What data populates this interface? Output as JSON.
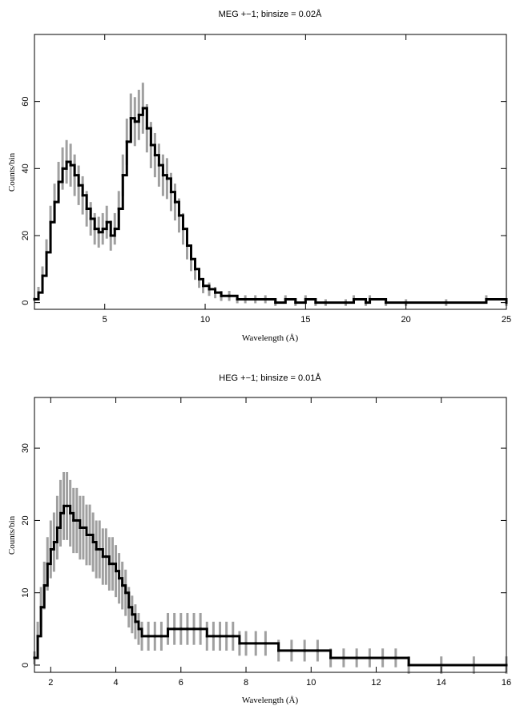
{
  "chart_data": [
    {
      "type": "line",
      "title": "MEG +−1; binsize = 0.02Å",
      "xlabel": "Wavelength (Å)",
      "ylabel": "Counts/bin",
      "xlim": [
        1.5,
        25
      ],
      "ylim": [
        -2,
        80
      ],
      "x_ticks": [
        5,
        10,
        15,
        20,
        25
      ],
      "y_ticks": [
        0,
        20,
        40,
        60
      ],
      "x_tick_labels": [
        "5",
        "10",
        "15",
        "20",
        "25"
      ],
      "y_tick_labels": [
        "0",
        "20",
        "40",
        "60"
      ],
      "grid": false,
      "series": [
        {
          "color": "#000000",
          "error_color": "#a0a0a0",
          "x": [
            1.5,
            1.7,
            1.9,
            2.1,
            2.3,
            2.5,
            2.7,
            2.9,
            3.1,
            3.3,
            3.5,
            3.7,
            3.9,
            4.1,
            4.3,
            4.5,
            4.7,
            4.9,
            5.1,
            5.3,
            5.5,
            5.7,
            5.9,
            6.1,
            6.3,
            6.5,
            6.7,
            6.9,
            7.1,
            7.3,
            7.5,
            7.7,
            7.9,
            8.1,
            8.3,
            8.5,
            8.7,
            8.9,
            9.1,
            9.3,
            9.5,
            9.7,
            9.9,
            10.2,
            10.5,
            10.8,
            11.2,
            11.6,
            12.0,
            12.5,
            13.0,
            13.5,
            14.0,
            14.5,
            15.0,
            15.5,
            16.0,
            17.0,
            17.4,
            18.0,
            18.2,
            19.0,
            20.0,
            22.0,
            24.0,
            25.0
          ],
          "y": [
            1,
            3,
            8,
            15,
            24,
            30,
            36,
            40,
            42,
            41,
            38,
            35,
            32,
            28,
            25,
            22,
            21,
            22,
            24,
            20,
            22,
            28,
            38,
            48,
            55,
            54,
            56,
            58,
            52,
            47,
            44,
            41,
            38,
            37,
            33,
            30,
            26,
            22,
            17,
            13,
            10,
            7,
            5,
            4,
            3,
            2,
            2,
            1,
            1,
            1,
            1,
            0,
            1,
            0,
            1,
            0,
            0,
            0,
            1,
            0,
            1,
            0,
            0,
            0,
            1,
            0
          ],
          "error": [
            0.5,
            1.7,
            2.8,
            3.9,
            4.9,
            5.5,
            6.0,
            6.3,
            6.5,
            6.4,
            6.2,
            5.9,
            5.7,
            5.3,
            5.0,
            4.7,
            4.6,
            4.7,
            4.9,
            4.5,
            4.7,
            5.3,
            6.2,
            6.9,
            7.4,
            7.3,
            7.5,
            7.6,
            7.2,
            6.9,
            6.6,
            6.4,
            6.2,
            6.1,
            5.7,
            5.5,
            5.1,
            4.7,
            4.1,
            3.6,
            3.2,
            2.6,
            2.2,
            2.0,
            1.7,
            1.5,
            1.5,
            1.2,
            1.2,
            1.2,
            1.2,
            1.0,
            1.2,
            1.0,
            1.2,
            1.0,
            1.0,
            1.0,
            1.2,
            1.0,
            1.2,
            1.0,
            1.0,
            1.0,
            1.2,
            1.0
          ]
        }
      ]
    },
    {
      "type": "line",
      "title": "HEG +−1; binsize = 0.01Å",
      "xlabel": "Wavelength (Å)",
      "ylabel": "Counts/bin",
      "xlim": [
        1.5,
        16
      ],
      "ylim": [
        -1,
        37
      ],
      "x_ticks": [
        2,
        4,
        6,
        8,
        10,
        12,
        14,
        16
      ],
      "y_ticks": [
        0,
        10,
        20,
        30
      ],
      "x_tick_labels": [
        "2",
        "4",
        "6",
        "8",
        "10",
        "12",
        "14",
        "16"
      ],
      "y_tick_labels": [
        "0",
        "10",
        "20",
        "30"
      ],
      "grid": false,
      "series": [
        {
          "color": "#000000",
          "error_color": "#a0a0a0",
          "x": [
            1.5,
            1.6,
            1.7,
            1.8,
            1.9,
            2.0,
            2.1,
            2.2,
            2.3,
            2.4,
            2.5,
            2.6,
            2.7,
            2.8,
            2.9,
            3.0,
            3.1,
            3.2,
            3.3,
            3.4,
            3.5,
            3.6,
            3.7,
            3.8,
            3.9,
            4.0,
            4.1,
            4.2,
            4.3,
            4.4,
            4.5,
            4.6,
            4.7,
            4.8,
            5.0,
            5.2,
            5.4,
            5.6,
            5.8,
            6.0,
            6.2,
            6.4,
            6.6,
            6.8,
            7.0,
            7.2,
            7.4,
            7.6,
            7.8,
            8.0,
            8.3,
            8.6,
            9.0,
            9.4,
            9.8,
            10.2,
            10.6,
            11.0,
            11.4,
            11.8,
            12.2,
            12.6,
            13.0,
            14.0,
            15.0,
            16.0
          ],
          "y": [
            1,
            4,
            8,
            11,
            14,
            16,
            17,
            19,
            21,
            22,
            22,
            21,
            20,
            20,
            19,
            19,
            18,
            18,
            17,
            16,
            16,
            15,
            15,
            14,
            14,
            13,
            12,
            11,
            10,
            8,
            7,
            6,
            5,
            4,
            4,
            4,
            4,
            5,
            5,
            5,
            5,
            5,
            5,
            4,
            4,
            4,
            4,
            4,
            3,
            3,
            3,
            3,
            2,
            2,
            2,
            2,
            1,
            1,
            1,
            1,
            1,
            1,
            0,
            0,
            0,
            0
          ],
          "error": [
            0.9,
            2.0,
            2.8,
            3.3,
            3.7,
            4.0,
            4.1,
            4.4,
            4.6,
            4.7,
            4.7,
            4.6,
            4.5,
            4.5,
            4.4,
            4.4,
            4.2,
            4.2,
            4.1,
            4.0,
            4.0,
            3.9,
            3.9,
            3.7,
            3.7,
            3.6,
            3.5,
            3.3,
            3.2,
            2.8,
            2.6,
            2.4,
            2.2,
            2.0,
            2.0,
            2.0,
            2.0,
            2.2,
            2.2,
            2.2,
            2.2,
            2.2,
            2.2,
            2.0,
            2.0,
            2.0,
            2.0,
            2.0,
            1.7,
            1.7,
            1.7,
            1.7,
            1.5,
            1.5,
            1.5,
            1.5,
            1.3,
            1.3,
            1.3,
            1.3,
            1.3,
            1.3,
            1.2,
            1.2,
            1.2,
            1.2
          ]
        }
      ]
    }
  ]
}
